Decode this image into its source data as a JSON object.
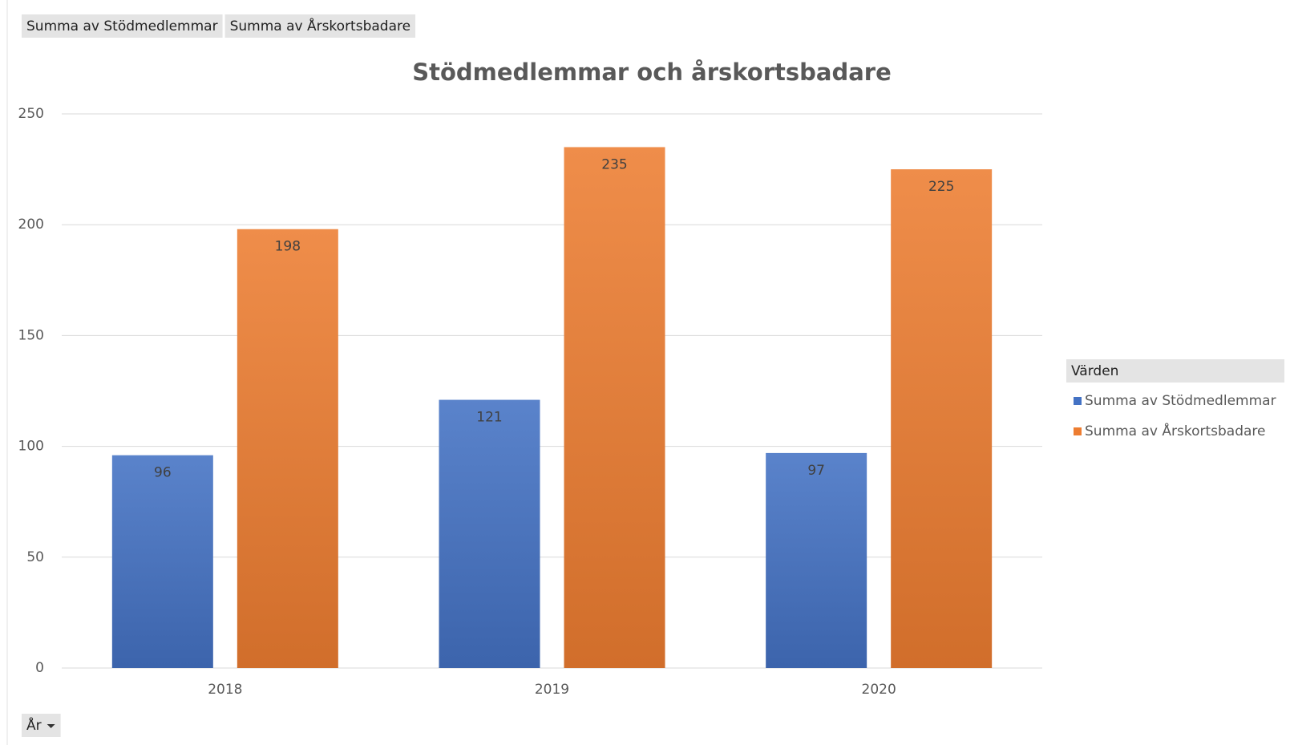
{
  "chart_data": {
    "type": "bar",
    "title": "Stödmedlemmar och årskortsbadare",
    "field_buttons": [
      "Summa av Stödmedlemmar",
      "Summa av Årskortsbadare"
    ],
    "axis_field_button": "År",
    "legend_title": "Värden",
    "legend": "right",
    "grid": true,
    "categories": [
      "2018",
      "2019",
      "2020"
    ],
    "series": [
      {
        "name": "Summa av Stödmedlemmar",
        "color": "#4472c4",
        "values": [
          96,
          121,
          97
        ]
      },
      {
        "name": "Summa av Årskortsbadare",
        "color": "#ed7d31",
        "values": [
          198,
          235,
          225
        ]
      }
    ],
    "ylim": [
      0,
      250
    ],
    "yticks": [
      0,
      50,
      100,
      150,
      200,
      250
    ]
  }
}
